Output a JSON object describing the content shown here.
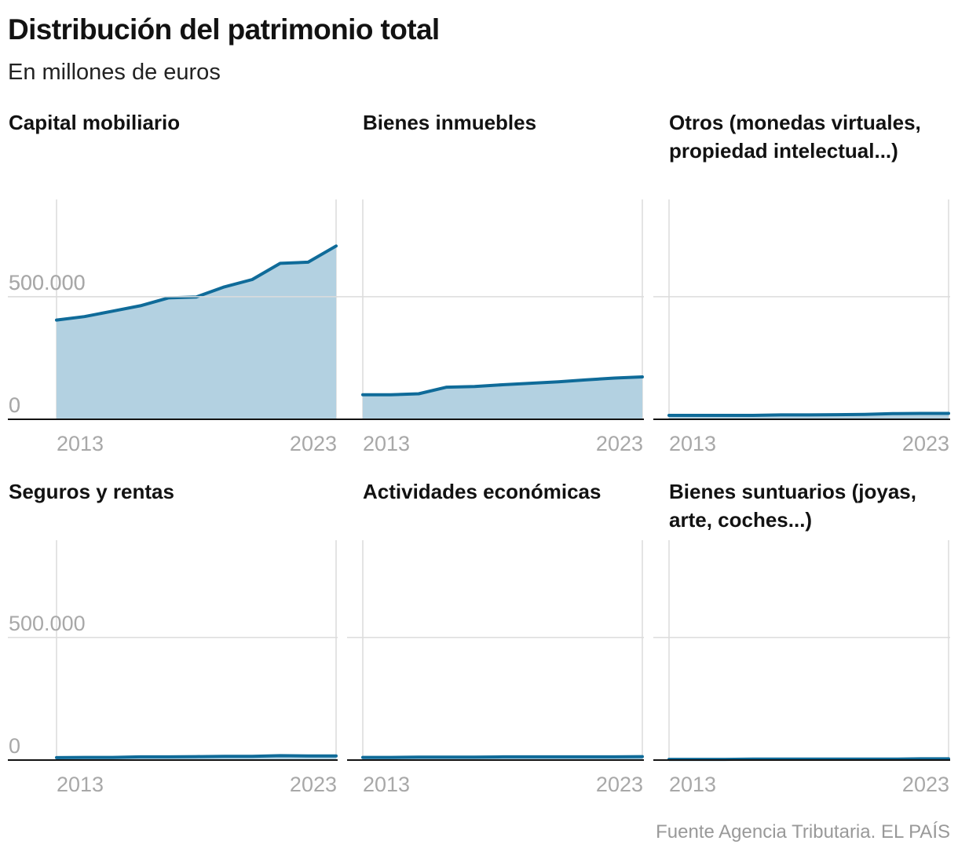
{
  "title": "Distribución del patrimonio total",
  "subtitle": "En millones de euros",
  "source": "Fuente Agencia Tributaria. EL PAÍS",
  "colors": {
    "line": "#0f6b99",
    "area": "#b3d1e1",
    "grid": "#dcdcdc",
    "axis": "#121212",
    "tick_text": "#a8a8a8"
  },
  "chart_data": [
    {
      "type": "area",
      "title": "Capital mobiliario",
      "x": [
        2013,
        2014,
        2015,
        2016,
        2017,
        2018,
        2019,
        2020,
        2021,
        2022,
        2023
      ],
      "values": [
        405000,
        419000,
        441000,
        463000,
        495000,
        499000,
        540000,
        570000,
        636000,
        641000,
        707000
      ],
      "ylim": [
        0,
        900000
      ],
      "y_ticks": [
        0,
        500000
      ],
      "y_tick_labels": [
        "0",
        "500.000"
      ],
      "x_tick_labels": [
        "2013",
        "2023"
      ],
      "grid": true
    },
    {
      "type": "area",
      "title": "Bienes inmuebles",
      "x": [
        2013,
        2014,
        2015,
        2016,
        2017,
        2018,
        2019,
        2020,
        2021,
        2022,
        2023
      ],
      "values": [
        100000,
        100000,
        104000,
        131000,
        134000,
        141000,
        147000,
        153000,
        161000,
        168000,
        173000
      ],
      "ylim": [
        0,
        900000
      ],
      "y_ticks": [
        0,
        500000
      ],
      "y_tick_labels": [
        "0",
        "500.000"
      ],
      "x_tick_labels": [
        "2013",
        "2023"
      ],
      "grid": true
    },
    {
      "type": "area",
      "title": "Otros (monedas virtuales, propiedad intelectual...)",
      "x": [
        2013,
        2014,
        2015,
        2016,
        2017,
        2018,
        2019,
        2020,
        2021,
        2022,
        2023
      ],
      "values": [
        16000,
        16000,
        16000,
        16000,
        18000,
        18000,
        19000,
        20000,
        23000,
        24000,
        24000
      ],
      "ylim": [
        0,
        900000
      ],
      "y_ticks": [
        0,
        500000
      ],
      "y_tick_labels": [
        "",
        ""
      ],
      "x_tick_labels": [
        "2013",
        "2023"
      ],
      "grid": true
    },
    {
      "type": "area",
      "title": "Seguros y rentas",
      "x": [
        2013,
        2014,
        2015,
        2016,
        2017,
        2018,
        2019,
        2020,
        2021,
        2022,
        2023
      ],
      "values": [
        10000,
        11000,
        11000,
        13000,
        13000,
        14000,
        15000,
        15000,
        18000,
        17000,
        17000
      ],
      "ylim": [
        0,
        900000
      ],
      "y_ticks": [
        0,
        500000
      ],
      "y_tick_labels": [
        "0",
        "500.000"
      ],
      "x_tick_labels": [
        "2013",
        "2023"
      ],
      "grid": true
    },
    {
      "type": "area",
      "title": "Actividades económicas",
      "x": [
        2013,
        2014,
        2015,
        2016,
        2017,
        2018,
        2019,
        2020,
        2021,
        2022,
        2023
      ],
      "values": [
        11000,
        11000,
        12000,
        12000,
        12000,
        13000,
        13000,
        13000,
        13000,
        13000,
        14000
      ],
      "ylim": [
        0,
        900000
      ],
      "y_ticks": [
        0,
        500000
      ],
      "y_tick_labels": [
        "",
        ""
      ],
      "x_tick_labels": [
        "2013",
        "2023"
      ],
      "grid": true
    },
    {
      "type": "area",
      "title": "Bienes suntuarios (joyas, arte, coches...)",
      "x": [
        2013,
        2014,
        2015,
        2016,
        2017,
        2018,
        2019,
        2020,
        2021,
        2022,
        2023
      ],
      "values": [
        3000,
        3000,
        3000,
        4000,
        4000,
        4000,
        4000,
        4000,
        4000,
        5000,
        5000
      ],
      "ylim": [
        0,
        900000
      ],
      "y_ticks": [
        0,
        500000
      ],
      "y_tick_labels": [
        "",
        ""
      ],
      "x_tick_labels": [
        "2013",
        "2023"
      ],
      "grid": true
    }
  ]
}
